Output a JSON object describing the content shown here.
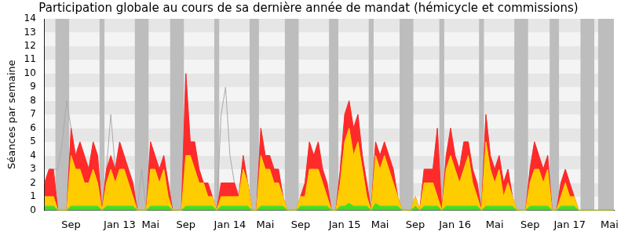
{
  "chart_data": {
    "type": "area",
    "title": "Participation globale au cours de sa dernière année de mandat (hémicycle et commissions)",
    "ylabel": "Séances par semaine",
    "categories": [
      null,
      null,
      null,
      null,
      null,
      null,
      "Sep",
      null,
      null,
      null,
      null,
      null,
      null,
      null,
      null,
      null,
      null,
      "Jan 13",
      null,
      null,
      null,
      null,
      null,
      null,
      "Mai",
      null,
      null,
      null,
      null,
      null,
      null,
      null,
      "Sep",
      null,
      null,
      null,
      null,
      null,
      null,
      null,
      null,
      null,
      "Jan 14",
      null,
      null,
      null,
      null,
      null,
      null,
      null,
      "Mai",
      null,
      null,
      null,
      null,
      null,
      null,
      null,
      "Sep",
      null,
      null,
      null,
      null,
      null,
      null,
      null,
      null,
      null,
      "Jan 15",
      null,
      null,
      null,
      null,
      null,
      null,
      null,
      "Mai",
      null,
      null,
      null,
      null,
      null,
      null,
      null,
      "Sep",
      null,
      null,
      null,
      null,
      null,
      null,
      null,
      null,
      "Jan 16",
      null,
      null,
      null,
      null,
      null,
      null,
      null,
      null,
      "Mai",
      null,
      null,
      null,
      null,
      null,
      null,
      null,
      "Sep",
      null,
      null,
      null,
      null,
      null,
      null,
      null,
      null,
      "Jan 17",
      null,
      null,
      null,
      null,
      null,
      null,
      null,
      null,
      "Mai",
      null
    ],
    "series": [
      {
        "type": "bar",
        "color": "#bdbdbd",
        "values": [
          null,
          null,
          null,
          14,
          14,
          14,
          null,
          null,
          null,
          null,
          null,
          null,
          null,
          14,
          null,
          null,
          null,
          null,
          null,
          null,
          null,
          14,
          14,
          14,
          null,
          null,
          null,
          null,
          null,
          14,
          14,
          14,
          null,
          null,
          null,
          null,
          null,
          null,
          null,
          14,
          null,
          null,
          null,
          null,
          null,
          null,
          null,
          14,
          14,
          null,
          null,
          null,
          null,
          null,
          null,
          14,
          14,
          14,
          null,
          null,
          null,
          null,
          null,
          null,
          null,
          14,
          14,
          null,
          null,
          null,
          null,
          null,
          null,
          null,
          14,
          null,
          null,
          null,
          null,
          null,
          null,
          14,
          14,
          14,
          null,
          null,
          null,
          null,
          null,
          null,
          14,
          null,
          null,
          null,
          null,
          null,
          null,
          null,
          null,
          14,
          null,
          null,
          null,
          null,
          null,
          null,
          null,
          14,
          14,
          14,
          null,
          null,
          null,
          null,
          null,
          14,
          14,
          null,
          null,
          null,
          null,
          null,
          14,
          14,
          14,
          null,
          14,
          14,
          14,
          14
        ]
      },
      {
        "type": "line",
        "color": "#aaaaaa",
        "values": [
          2,
          3,
          3,
          3,
          5,
          8,
          6,
          4,
          5,
          4,
          3,
          5,
          4,
          0,
          3,
          7,
          3,
          5,
          4,
          3,
          2,
          0,
          3,
          0,
          5,
          4,
          3,
          4,
          2,
          0,
          0,
          0,
          10,
          5,
          5,
          3,
          2,
          2,
          1,
          0,
          7,
          9,
          4,
          2,
          1,
          4,
          2,
          0,
          0,
          6,
          4,
          4,
          3,
          3,
          1,
          0,
          0,
          0,
          1,
          2,
          5,
          4,
          5,
          3,
          2,
          0,
          0,
          3,
          7,
          8,
          6,
          7,
          4,
          2,
          0,
          5,
          4,
          5,
          4,
          3,
          1,
          0,
          0,
          0,
          1,
          0,
          3,
          3,
          3,
          6,
          0,
          4,
          6,
          4,
          3,
          5,
          5,
          3,
          2,
          0,
          7,
          4,
          3,
          4,
          2,
          3,
          1,
          0,
          0,
          0,
          3,
          5,
          4,
          3,
          4,
          0,
          0,
          2,
          3,
          2,
          1,
          0,
          0,
          0,
          0,
          0,
          0,
          0,
          0,
          0
        ]
      },
      {
        "type": "area",
        "color": "#44dd22",
        "values": [
          0.3,
          0.3,
          0.3,
          0,
          0,
          0,
          0.3,
          0.3,
          0.3,
          0.3,
          0.3,
          0.3,
          0.3,
          0,
          0.3,
          0.3,
          0.3,
          0.3,
          0.3,
          0.3,
          0.3,
          0,
          0,
          0,
          0.3,
          0.3,
          0.3,
          0.3,
          0.3,
          0,
          0,
          0,
          0.3,
          0.3,
          0.3,
          0.3,
          0.3,
          0.3,
          0.3,
          0,
          0.3,
          0.3,
          0.3,
          0.3,
          0.3,
          0.3,
          0.3,
          0,
          0,
          0.3,
          0.3,
          0.3,
          0.3,
          0.3,
          0.3,
          0,
          0,
          0,
          0.3,
          0.3,
          0.3,
          0.3,
          0.3,
          0.3,
          0.3,
          0,
          0,
          0.3,
          0.3,
          0.5,
          0.3,
          0.3,
          0.3,
          0.3,
          0,
          0.5,
          0.3,
          0.3,
          0.3,
          0.3,
          0.3,
          0,
          0,
          0,
          0.3,
          0,
          0.3,
          0.3,
          0.3,
          0.3,
          0,
          0.3,
          0.3,
          0.3,
          0.3,
          0.3,
          0.3,
          0.3,
          0.3,
          0,
          0.3,
          0.3,
          0.3,
          0.3,
          0.3,
          0.3,
          0.3,
          0,
          0,
          0,
          0.3,
          0.3,
          0.3,
          0.3,
          0.3,
          0,
          0,
          0.3,
          0.3,
          0.3,
          0.3,
          0,
          0,
          0,
          0,
          0,
          0,
          0,
          0,
          0
        ]
      },
      {
        "type": "area",
        "color": "#ffcc00",
        "values": [
          0.7,
          0.7,
          0.7,
          0,
          0,
          0,
          3.7,
          2.7,
          2.7,
          1.7,
          1.7,
          2.7,
          1.7,
          0,
          1.7,
          2.7,
          1.7,
          2.7,
          2.7,
          1.7,
          0.7,
          0,
          0,
          0,
          2.7,
          2.7,
          1.7,
          2.7,
          0.7,
          0,
          0,
          0,
          3.7,
          3.7,
          2.7,
          1.7,
          1.7,
          0.7,
          0.7,
          0,
          0.7,
          0.7,
          0.7,
          0.7,
          0.7,
          2.7,
          1.7,
          0,
          0,
          3.7,
          2.7,
          2.7,
          1.7,
          1.7,
          0.7,
          0,
          0,
          0,
          0.7,
          0.7,
          2.7,
          2.7,
          2.7,
          1.7,
          0.7,
          0,
          0,
          1.7,
          4.7,
          5.5,
          3.7,
          4.7,
          2.7,
          0.7,
          0,
          3.5,
          2.7,
          3.7,
          2.7,
          1.7,
          0.7,
          0,
          0,
          0,
          0.7,
          0,
          1.7,
          1.7,
          1.7,
          0.7,
          0,
          2.7,
          3.7,
          2.7,
          1.7,
          2.7,
          3.7,
          1.7,
          0.7,
          0,
          4.7,
          2.7,
          1.7,
          2.7,
          0.7,
          1.7,
          0.7,
          0,
          0,
          0,
          1.7,
          2.7,
          2.7,
          1.7,
          2.7,
          0,
          0,
          0.7,
          1.7,
          0.7,
          0.7,
          0,
          0,
          0,
          0,
          0,
          0,
          0,
          0,
          0
        ]
      },
      {
        "type": "area",
        "color": "#ff2a2a",
        "values": [
          1,
          2,
          2,
          0,
          0,
          0,
          2,
          1,
          2,
          2,
          1,
          2,
          2,
          0,
          1,
          1,
          1,
          2,
          1,
          1,
          1,
          0,
          0,
          0,
          2,
          1,
          1,
          1,
          1,
          0,
          0,
          0,
          6,
          1,
          2,
          1,
          0,
          1,
          0,
          0,
          1,
          1,
          1,
          1,
          0,
          1,
          0,
          0,
          0,
          2,
          1,
          1,
          1,
          1,
          0,
          0,
          0,
          0,
          0,
          1,
          2,
          1,
          2,
          1,
          1,
          0,
          0,
          1,
          2,
          2,
          2,
          2,
          1,
          1,
          0,
          1,
          1,
          1,
          1,
          1,
          0,
          0,
          0,
          0,
          0,
          0,
          1,
          1,
          1,
          5,
          0,
          1,
          2,
          1,
          1,
          2,
          1,
          1,
          1,
          0,
          2,
          1,
          1,
          1,
          1,
          1,
          0,
          0,
          0,
          0,
          1,
          2,
          1,
          1,
          1,
          0,
          0,
          1,
          1,
          1,
          0,
          0,
          0,
          0,
          0,
          0,
          0,
          0,
          0,
          0
        ]
      }
    ],
    "stacked": true,
    "ylim": [
      0,
      14
    ],
    "yticks": [
      0,
      1,
      2,
      3,
      4,
      5,
      6,
      7,
      8,
      9,
      10,
      11,
      12,
      13,
      14
    ],
    "grid": true
  }
}
